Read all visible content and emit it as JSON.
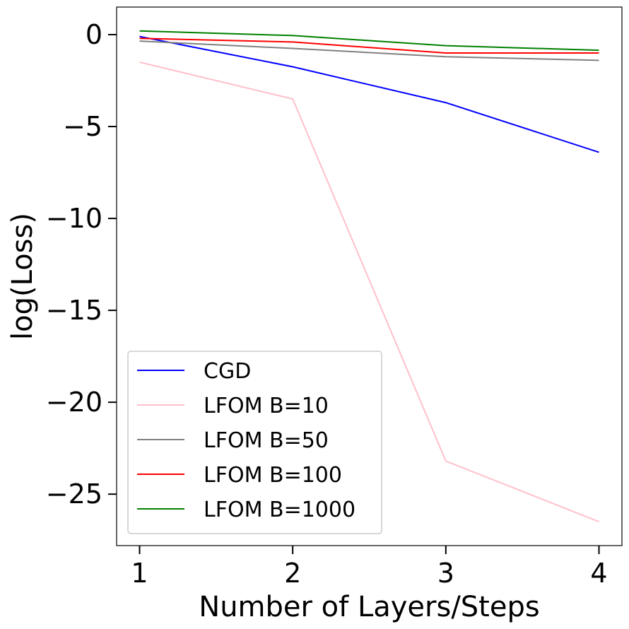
{
  "chart_data": {
    "type": "line",
    "title": "",
    "xlabel": "Number of Layers/Steps",
    "ylabel": "log(Loss)",
    "x": [
      1,
      2,
      3,
      4
    ],
    "xticks": [
      1,
      2,
      3,
      4
    ],
    "xtick_labels": [
      "1",
      "2",
      "3",
      "4"
    ],
    "yticks": [
      0,
      -5,
      -10,
      -15,
      -20,
      -25
    ],
    "ytick_labels": [
      "0",
      "−5",
      "−10",
      "−15",
      "−20",
      "−25"
    ],
    "xlim": [
      0.85,
      4.15
    ],
    "ylim": [
      -27.8,
      1.5
    ],
    "grid": false,
    "legend_position": "lower-left",
    "series": [
      {
        "name": "CGD",
        "color": "#0000ff",
        "values": [
          -0.1,
          -1.75,
          -3.7,
          -6.4
        ]
      },
      {
        "name": "LFOM B=10",
        "color": "#ffc0cb",
        "values": [
          -1.5,
          -3.5,
          -23.2,
          -26.5
        ]
      },
      {
        "name": "LFOM B=50",
        "color": "#808080",
        "values": [
          -0.35,
          -0.75,
          -1.2,
          -1.4
        ]
      },
      {
        "name": "LFOM B=100",
        "color": "#ff0000",
        "values": [
          -0.2,
          -0.4,
          -1.0,
          -1.0
        ]
      },
      {
        "name": "LFOM B=1000",
        "color": "#008000",
        "values": [
          0.2,
          -0.05,
          -0.6,
          -0.85
        ]
      }
    ]
  }
}
